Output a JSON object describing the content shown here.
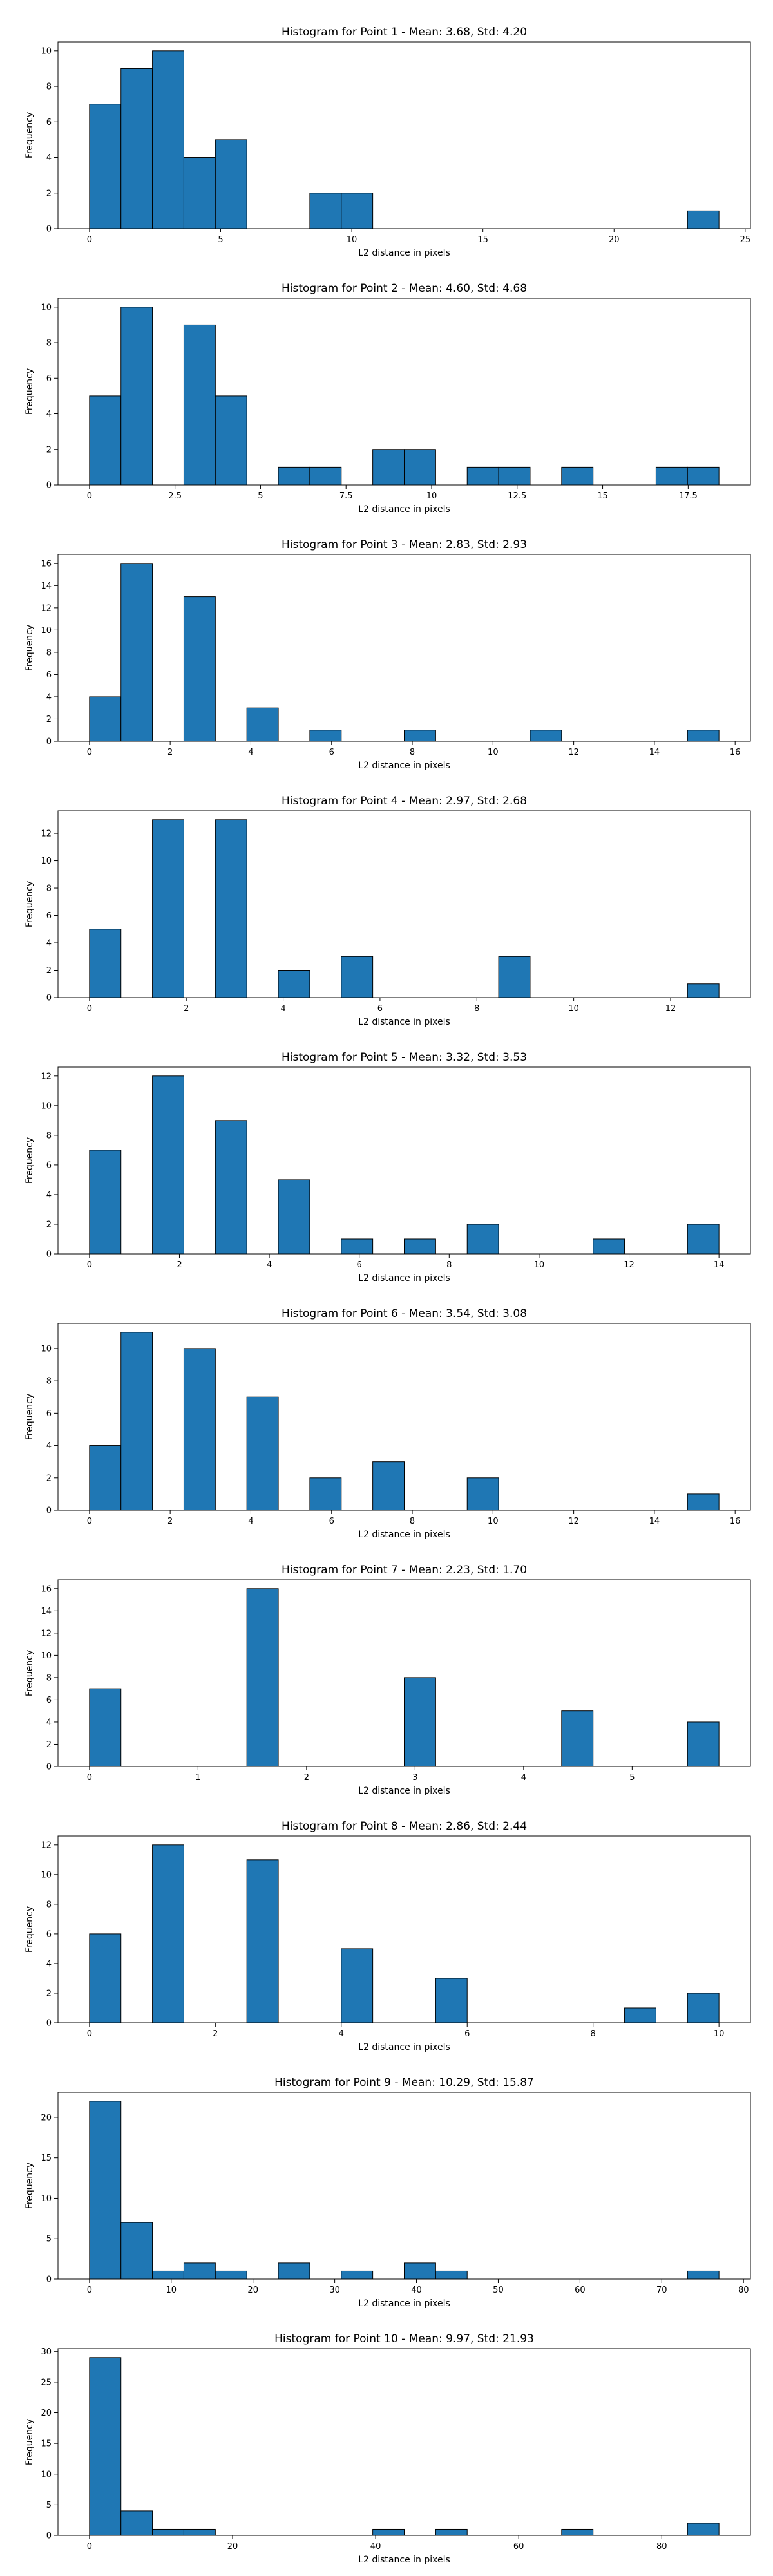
{
  "chart_data": [
    {
      "type": "bar",
      "title": "Histogram for Point 1 - Mean: 3.68, Std: 4.20",
      "xlabel": "L2 distance in pixels",
      "ylabel": "Frequency",
      "xlim": [
        -1.2,
        25.2
      ],
      "ylim": [
        0,
        10.5
      ],
      "xticks": [
        0,
        5,
        10,
        15,
        20,
        25
      ],
      "yticks": [
        0,
        2,
        4,
        6,
        8,
        10
      ],
      "bin_width": 1.2,
      "bins": [
        {
          "x0": 0.0,
          "count": 7
        },
        {
          "x0": 1.2,
          "count": 9
        },
        {
          "x0": 2.4,
          "count": 10
        },
        {
          "x0": 3.6,
          "count": 4
        },
        {
          "x0": 4.8,
          "count": 5
        },
        {
          "x0": 8.4,
          "count": 2
        },
        {
          "x0": 9.6,
          "count": 2
        },
        {
          "x0": 22.8,
          "count": 1
        }
      ]
    },
    {
      "type": "bar",
      "title": "Histogram for Point 2 - Mean: 4.60, Std: 4.68",
      "xlabel": "L2 distance in pixels",
      "ylabel": "Frequency",
      "xlim": [
        -0.92,
        19.32
      ],
      "ylim": [
        0,
        10.5
      ],
      "xticks": [
        0.0,
        2.5,
        5.0,
        7.5,
        10.0,
        12.5,
        15.0,
        17.5
      ],
      "yticks": [
        0,
        2,
        4,
        6,
        8,
        10
      ],
      "bin_width": 0.92,
      "bins": [
        {
          "x0": 0.0,
          "count": 5
        },
        {
          "x0": 0.92,
          "count": 10
        },
        {
          "x0": 2.76,
          "count": 9
        },
        {
          "x0": 3.68,
          "count": 5
        },
        {
          "x0": 5.52,
          "count": 1
        },
        {
          "x0": 6.44,
          "count": 1
        },
        {
          "x0": 8.28,
          "count": 2
        },
        {
          "x0": 9.2,
          "count": 2
        },
        {
          "x0": 11.04,
          "count": 1
        },
        {
          "x0": 11.96,
          "count": 1
        },
        {
          "x0": 13.8,
          "count": 1
        },
        {
          "x0": 16.56,
          "count": 1
        },
        {
          "x0": 17.48,
          "count": 1
        }
      ]
    },
    {
      "type": "bar",
      "title": "Histogram for Point 3 - Mean: 2.83, Std: 2.93",
      "xlabel": "L2 distance in pixels",
      "ylabel": "Frequency",
      "xlim": [
        -0.78,
        16.38
      ],
      "ylim": [
        0,
        16.8
      ],
      "xticks": [
        0,
        2,
        4,
        6,
        8,
        10,
        12,
        14,
        16
      ],
      "yticks": [
        0,
        2,
        4,
        6,
        8,
        10,
        12,
        14,
        16
      ],
      "bin_width": 0.78,
      "bins": [
        {
          "x0": 0.0,
          "count": 4
        },
        {
          "x0": 0.78,
          "count": 16
        },
        {
          "x0": 2.34,
          "count": 13
        },
        {
          "x0": 3.9,
          "count": 3
        },
        {
          "x0": 5.46,
          "count": 1
        },
        {
          "x0": 7.8,
          "count": 1
        },
        {
          "x0": 10.92,
          "count": 1
        },
        {
          "x0": 14.82,
          "count": 1
        }
      ]
    },
    {
      "type": "bar",
      "title": "Histogram for Point 4 - Mean: 2.97, Std: 2.68",
      "xlabel": "L2 distance in pixels",
      "ylabel": "Frequency",
      "xlim": [
        -0.65,
        13.65
      ],
      "ylim": [
        0,
        13.65
      ],
      "xticks": [
        0,
        2,
        4,
        6,
        8,
        10,
        12
      ],
      "yticks": [
        0,
        2,
        4,
        6,
        8,
        10,
        12
      ],
      "bin_width": 0.65,
      "bins": [
        {
          "x0": 0.0,
          "count": 5
        },
        {
          "x0": 1.3,
          "count": 13
        },
        {
          "x0": 2.6,
          "count": 13
        },
        {
          "x0": 3.9,
          "count": 2
        },
        {
          "x0": 5.2,
          "count": 3
        },
        {
          "x0": 8.45,
          "count": 3
        },
        {
          "x0": 12.35,
          "count": 1
        }
      ]
    },
    {
      "type": "bar",
      "title": "Histogram for Point 5 - Mean: 3.32, Std: 3.53",
      "xlabel": "L2 distance in pixels",
      "ylabel": "Frequency",
      "xlim": [
        -0.7,
        14.7
      ],
      "ylim": [
        0,
        12.6
      ],
      "xticks": [
        0,
        2,
        4,
        6,
        8,
        10,
        12,
        14
      ],
      "yticks": [
        0,
        2,
        4,
        6,
        8,
        10,
        12
      ],
      "bin_width": 0.7,
      "bins": [
        {
          "x0": 0.0,
          "count": 7
        },
        {
          "x0": 1.4,
          "count": 12
        },
        {
          "x0": 2.8,
          "count": 9
        },
        {
          "x0": 4.2,
          "count": 5
        },
        {
          "x0": 5.6,
          "count": 1
        },
        {
          "x0": 7.0,
          "count": 1
        },
        {
          "x0": 8.4,
          "count": 2
        },
        {
          "x0": 11.2,
          "count": 1
        },
        {
          "x0": 13.3,
          "count": 2
        }
      ]
    },
    {
      "type": "bar",
      "title": "Histogram for Point 6 - Mean: 3.54, Std: 3.08",
      "xlabel": "L2 distance in pixels",
      "ylabel": "Frequency",
      "xlim": [
        -0.78,
        16.38
      ],
      "ylim": [
        0,
        11.55
      ],
      "xticks": [
        0,
        2,
        4,
        6,
        8,
        10,
        12,
        14,
        16
      ],
      "yticks": [
        0,
        2,
        4,
        6,
        8,
        10
      ],
      "bin_width": 0.78,
      "bins": [
        {
          "x0": 0.0,
          "count": 4
        },
        {
          "x0": 0.78,
          "count": 11
        },
        {
          "x0": 2.34,
          "count": 10
        },
        {
          "x0": 3.9,
          "count": 7
        },
        {
          "x0": 5.46,
          "count": 2
        },
        {
          "x0": 7.02,
          "count": 3
        },
        {
          "x0": 9.36,
          "count": 2
        },
        {
          "x0": 14.82,
          "count": 1
        }
      ]
    },
    {
      "type": "bar",
      "title": "Histogram for Point 7 - Mean: 2.23, Std: 1.70",
      "xlabel": "L2 distance in pixels",
      "ylabel": "Frequency",
      "xlim": [
        -0.29,
        6.09
      ],
      "ylim": [
        0,
        16.8
      ],
      "xticks": [
        0,
        1,
        2,
        3,
        4,
        5
      ],
      "yticks": [
        0,
        2,
        4,
        6,
        8,
        10,
        12,
        14,
        16
      ],
      "bin_width": 0.29,
      "bins": [
        {
          "x0": 0.0,
          "count": 7
        },
        {
          "x0": 1.45,
          "count": 16
        },
        {
          "x0": 2.9,
          "count": 8
        },
        {
          "x0": 4.35,
          "count": 5
        },
        {
          "x0": 5.51,
          "count": 4
        }
      ]
    },
    {
      "type": "bar",
      "title": "Histogram for Point 8 - Mean: 2.86, Std: 2.44",
      "xlabel": "L2 distance in pixels",
      "ylabel": "Frequency",
      "xlim": [
        -0.5,
        10.5
      ],
      "ylim": [
        0,
        12.6
      ],
      "xticks": [
        0,
        2,
        4,
        6,
        8,
        10
      ],
      "yticks": [
        0,
        2,
        4,
        6,
        8,
        10,
        12
      ],
      "bin_width": 0.5,
      "bins": [
        {
          "x0": 0.0,
          "count": 6
        },
        {
          "x0": 1.0,
          "count": 12
        },
        {
          "x0": 2.5,
          "count": 11
        },
        {
          "x0": 4.0,
          "count": 5
        },
        {
          "x0": 5.5,
          "count": 3
        },
        {
          "x0": 8.5,
          "count": 1
        },
        {
          "x0": 9.5,
          "count": 2
        }
      ]
    },
    {
      "type": "bar",
      "title": "Histogram for Point 9 - Mean: 10.29, Std: 15.87",
      "xlabel": "L2 distance in pixels",
      "ylabel": "Frequency",
      "xlim": [
        -3.85,
        80.85
      ],
      "ylim": [
        0,
        23.1
      ],
      "xticks": [
        0,
        10,
        20,
        30,
        40,
        50,
        60,
        70,
        80
      ],
      "yticks": [
        0,
        5,
        10,
        15,
        20
      ],
      "bin_width": 3.85,
      "bins": [
        {
          "x0": 0.0,
          "count": 22
        },
        {
          "x0": 3.85,
          "count": 7
        },
        {
          "x0": 7.7,
          "count": 1
        },
        {
          "x0": 11.55,
          "count": 2
        },
        {
          "x0": 15.4,
          "count": 1
        },
        {
          "x0": 23.1,
          "count": 2
        },
        {
          "x0": 30.8,
          "count": 1
        },
        {
          "x0": 38.5,
          "count": 2
        },
        {
          "x0": 42.35,
          "count": 1
        },
        {
          "x0": 73.15,
          "count": 1
        }
      ]
    },
    {
      "type": "bar",
      "title": "Histogram for Point 10 - Mean: 9.97, Std: 21.93",
      "xlabel": "L2 distance in pixels",
      "ylabel": "Frequency",
      "xlim": [
        -4.4,
        92.4
      ],
      "ylim": [
        0,
        30.45
      ],
      "xticks": [
        0,
        20,
        40,
        60,
        80
      ],
      "yticks": [
        0,
        5,
        10,
        15,
        20,
        25,
        30
      ],
      "bin_width": 4.4,
      "bins": [
        {
          "x0": 0.0,
          "count": 29
        },
        {
          "x0": 4.4,
          "count": 4
        },
        {
          "x0": 8.8,
          "count": 1
        },
        {
          "x0": 13.2,
          "count": 1
        },
        {
          "x0": 39.6,
          "count": 1
        },
        {
          "x0": 48.4,
          "count": 1
        },
        {
          "x0": 66.0,
          "count": 1
        },
        {
          "x0": 83.6,
          "count": 2
        }
      ]
    }
  ]
}
